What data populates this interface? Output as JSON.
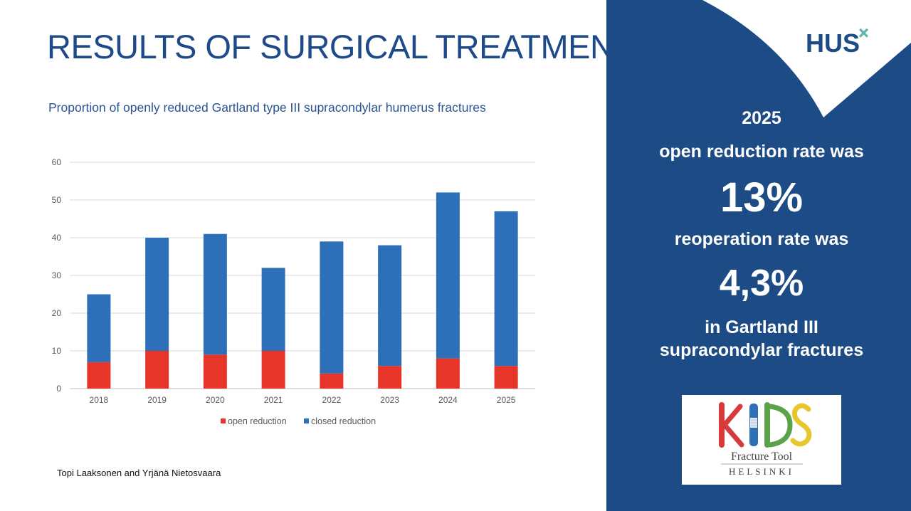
{
  "slide": {
    "title": "RESULTS OF SURGICAL TREATMENT",
    "subtitle": "Proportion of openly reduced Gartland type III supracondylar humerus fractures",
    "author": "Topi Laaksonen and Yrjänä Nietosvaara"
  },
  "panel": {
    "logo_text": "HUS",
    "logo_mark": "plus-icon",
    "year": "2025",
    "line1": "open reduction rate was",
    "big1": "13%",
    "line2": "reoperation rate was",
    "big2": "4,3%",
    "line3": "in Gartland III",
    "line4": "supracondylar fractures"
  },
  "kids_logo": {
    "letters": [
      "K",
      "I",
      "D",
      "S"
    ],
    "caption": "Fracture Tool",
    "city": "HELSINKI"
  },
  "colors": {
    "primary": "#1c4b85",
    "title": "#1e4a8a",
    "open_reduction": "#e8352a",
    "closed_reduction": "#2e6fba",
    "accent": "#5fb7b0"
  },
  "chart_data": {
    "type": "bar",
    "stacked": true,
    "categories": [
      "2018",
      "2019",
      "2020",
      "2021",
      "2022",
      "2023",
      "2024",
      "2025"
    ],
    "series": [
      {
        "name": "open reduction",
        "color": "#e8352a",
        "values": [
          7,
          10,
          9,
          10,
          4,
          6,
          8,
          6
        ]
      },
      {
        "name": "closed reduction",
        "color": "#2e6fba",
        "values": [
          18,
          30,
          32,
          22,
          35,
          32,
          44,
          41
        ]
      }
    ],
    "yticks": [
      0,
      10,
      20,
      30,
      40,
      50,
      60
    ],
    "ylim": [
      0,
      60
    ],
    "grid": true,
    "legend": "bottom"
  }
}
